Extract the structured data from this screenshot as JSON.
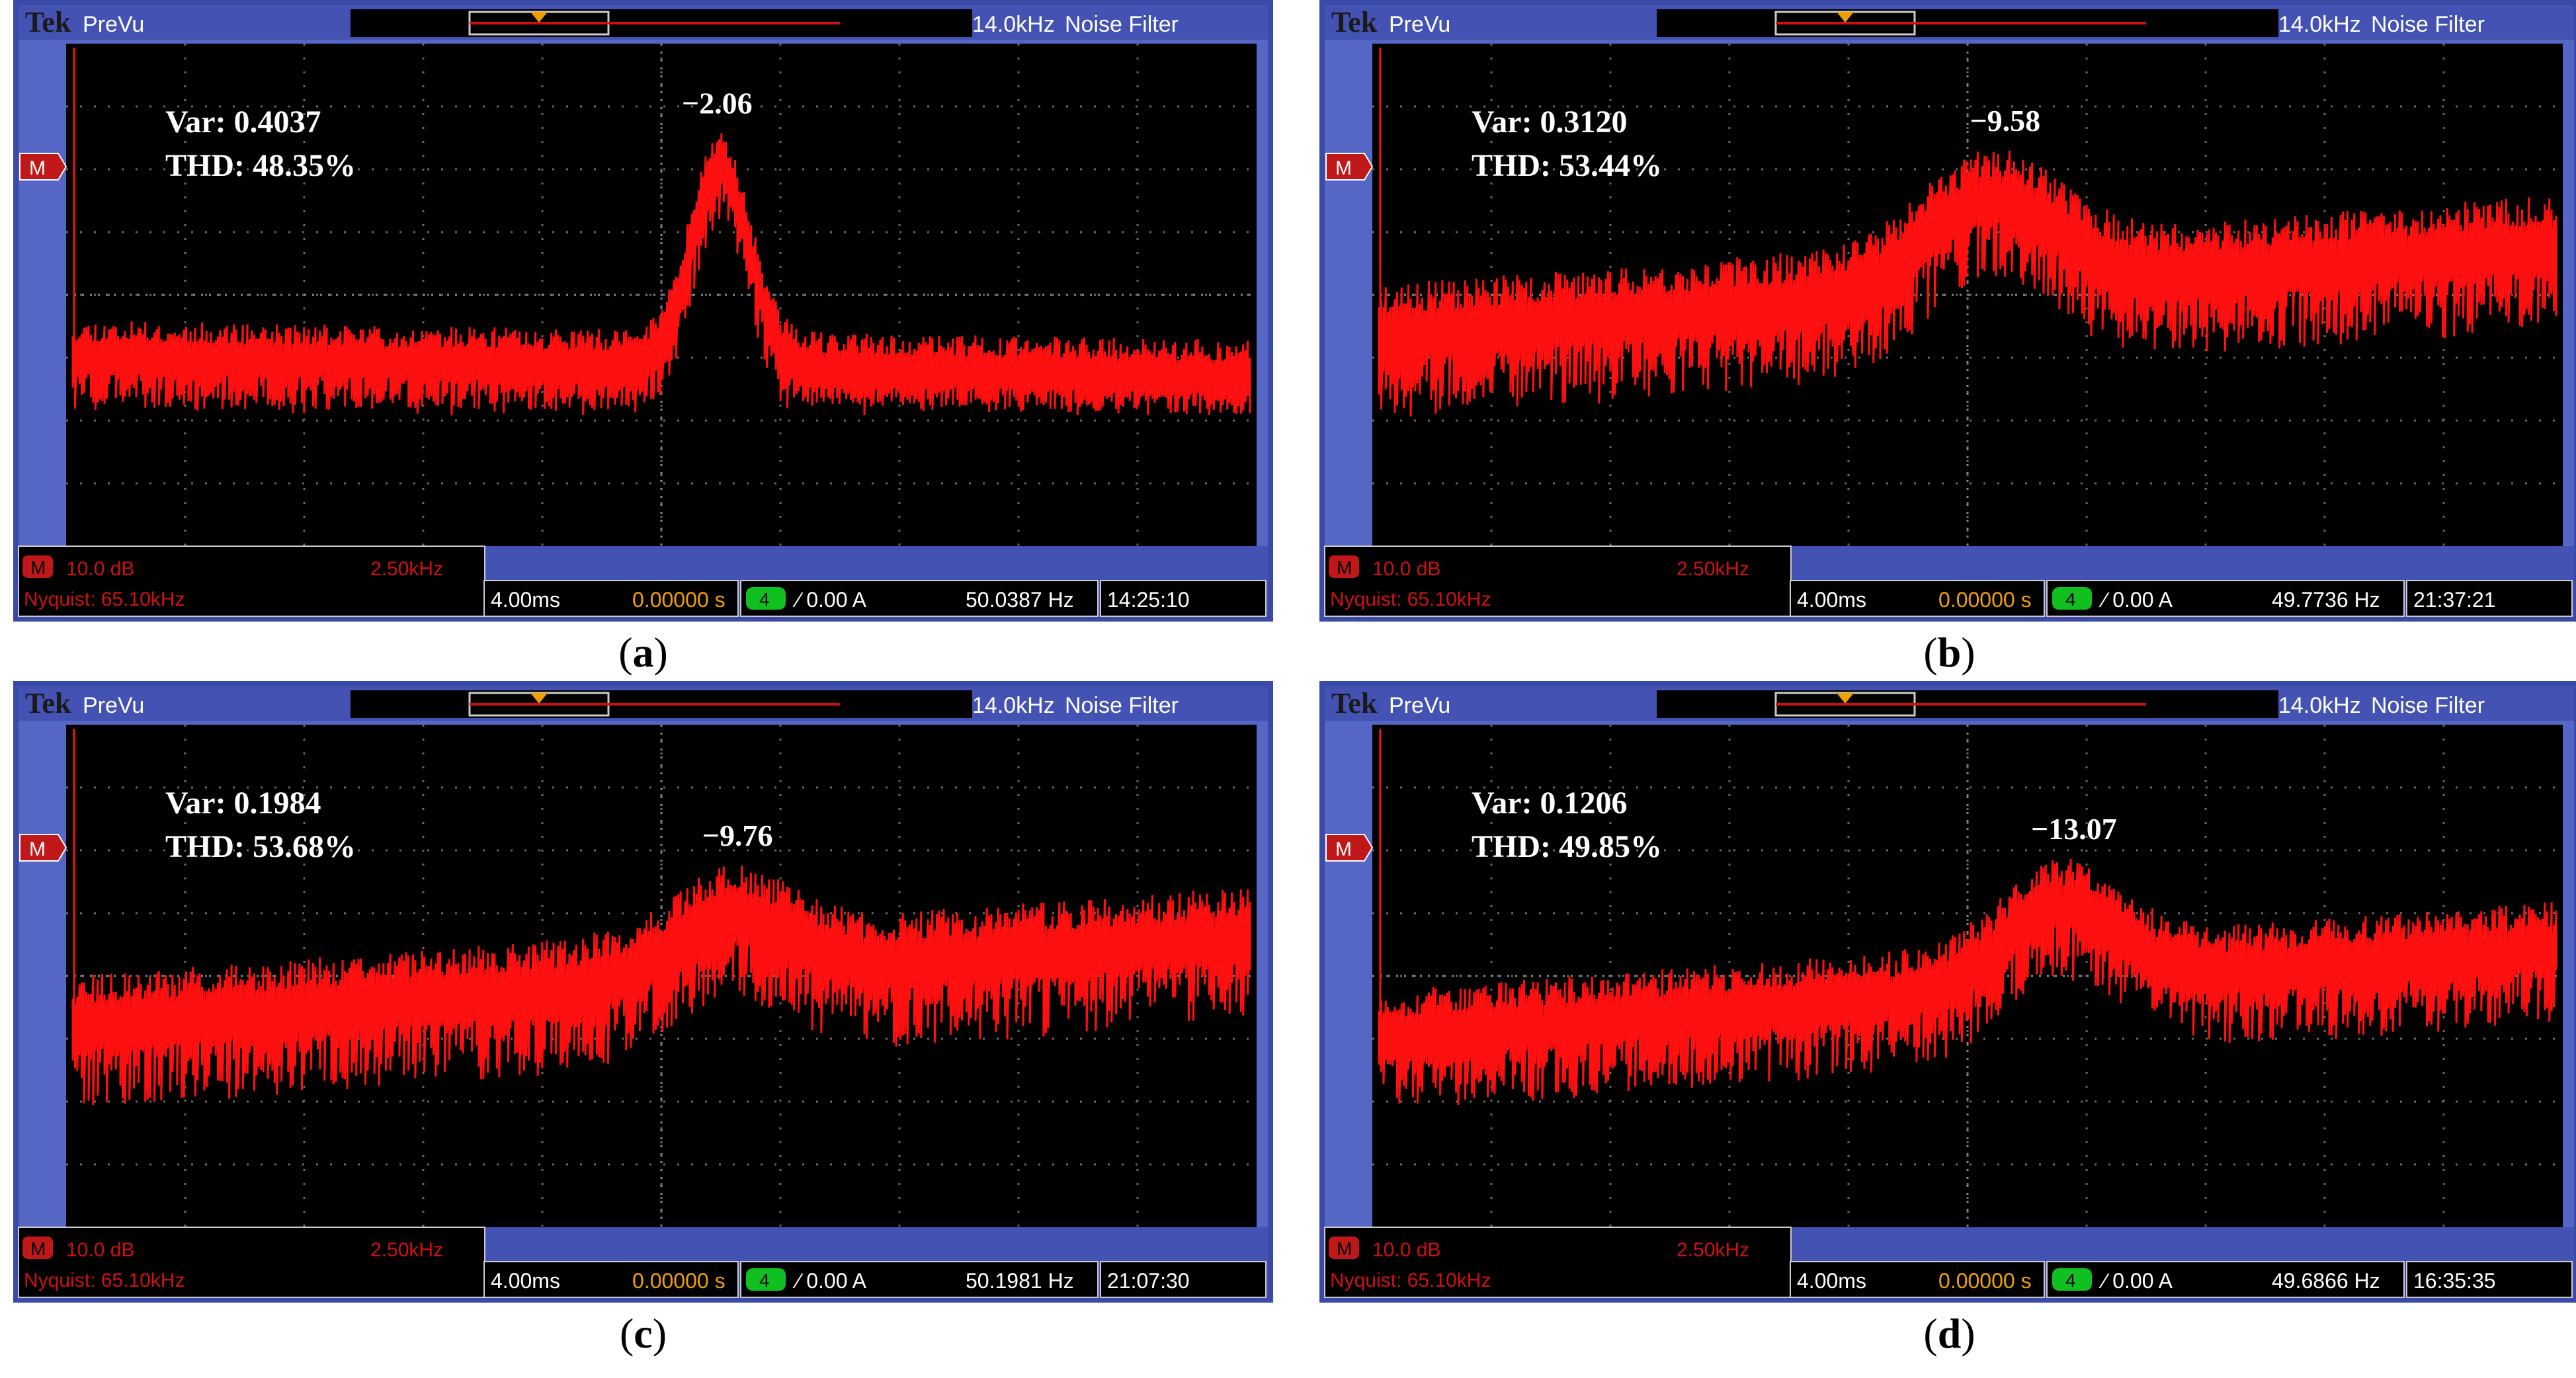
{
  "chart_data": [
    {
      "type": "line",
      "panel": "a",
      "caption_letter": "a",
      "header": {
        "brand": "Tek",
        "mode": "PreVu",
        "bw": "14.0kHz",
        "filter": "Noise Filter"
      },
      "annotation": {
        "var": "Var: 0.4037",
        "thd": "THD: 48.35%",
        "peak": "−2.06"
      },
      "status": {
        "ch": "M",
        "scale": "10.0 dB",
        "span": "2.50kHz",
        "nyquist": "Nyquist: 65.10kHz",
        "time": "4.00ms",
        "pos": "0.00000 s",
        "chan": "4",
        "trig": "∕ 0.00 A",
        "freq": "50.0387 Hz",
        "clock": "14:25:10"
      },
      "trace": {
        "color": "#ff1010",
        "level_left": 0.62,
        "level_right": 0.66,
        "hump_center": 0.55,
        "hump_width": 0.035,
        "hump_height": 0.4,
        "jitter": 0.07,
        "floor": 0.7,
        "seed": 11
      }
    },
    {
      "type": "line",
      "panel": "b",
      "caption_letter": "b",
      "header": {
        "brand": "Tek",
        "mode": "PreVu",
        "bw": "14.0kHz",
        "filter": "Noise Filter"
      },
      "annotation": {
        "var": "Var: 0.3120",
        "thd": "THD: 53.44%",
        "peak": "−9.58"
      },
      "status": {
        "ch": "M",
        "scale": "10.0 dB",
        "span": "2.50kHz",
        "nyquist": "Nyquist: 65.10kHz",
        "time": "4.00ms",
        "pos": "0.00000 s",
        "chan": "4",
        "trig": "∕ 0.00 A",
        "freq": "49.7736 Hz",
        "clock": "21:37:21"
      },
      "trace": {
        "color": "#ff1010",
        "level_left": 0.58,
        "level_right": 0.4,
        "hump_center": 0.52,
        "hump_width": 0.08,
        "hump_height": 0.18,
        "jitter": 0.1,
        "floor": 0.72,
        "seed": 23
      }
    },
    {
      "type": "line",
      "panel": "c",
      "caption_letter": "c",
      "header": {
        "brand": "Tek",
        "mode": "PreVu",
        "bw": "14.0kHz",
        "filter": "Noise Filter"
      },
      "annotation": {
        "var": "Var: 0.1984",
        "thd": "THD: 53.68%",
        "peak": "−9.76"
      },
      "status": {
        "ch": "M",
        "scale": "10.0 dB",
        "span": "2.50kHz",
        "nyquist": "Nyquist: 65.10kHz",
        "time": "4.00ms",
        "pos": "0.00000 s",
        "chan": "4",
        "trig": "∕ 0.00 A",
        "freq": "50.1981 Hz",
        "clock": "21:07:30"
      },
      "trace": {
        "color": "#ff1010",
        "level_left": 0.6,
        "level_right": 0.42,
        "hump_center": 0.56,
        "hump_width": 0.07,
        "hump_height": 0.12,
        "jitter": 0.1,
        "floor": 0.74,
        "seed": 37
      }
    },
    {
      "type": "line",
      "panel": "d",
      "caption_letter": "d",
      "header": {
        "brand": "Tek",
        "mode": "PreVu",
        "bw": "14.0kHz",
        "filter": "Noise Filter"
      },
      "annotation": {
        "var": "Var: 0.1206",
        "thd": "THD: 49.85%",
        "peak": "−13.07"
      },
      "status": {
        "ch": "M",
        "scale": "10.0 dB",
        "span": "2.50kHz",
        "nyquist": "Nyquist: 65.10kHz",
        "time": "4.00ms",
        "pos": "0.00000 s",
        "chan": "4",
        "trig": "∕ 0.00 A",
        "freq": "49.6866 Hz",
        "clock": "16:35:35"
      },
      "trace": {
        "color": "#ff1010",
        "level_left": 0.62,
        "level_right": 0.44,
        "hump_center": 0.58,
        "hump_width": 0.07,
        "hump_height": 0.16,
        "jitter": 0.09,
        "floor": 0.76,
        "seed": 53
      }
    }
  ]
}
